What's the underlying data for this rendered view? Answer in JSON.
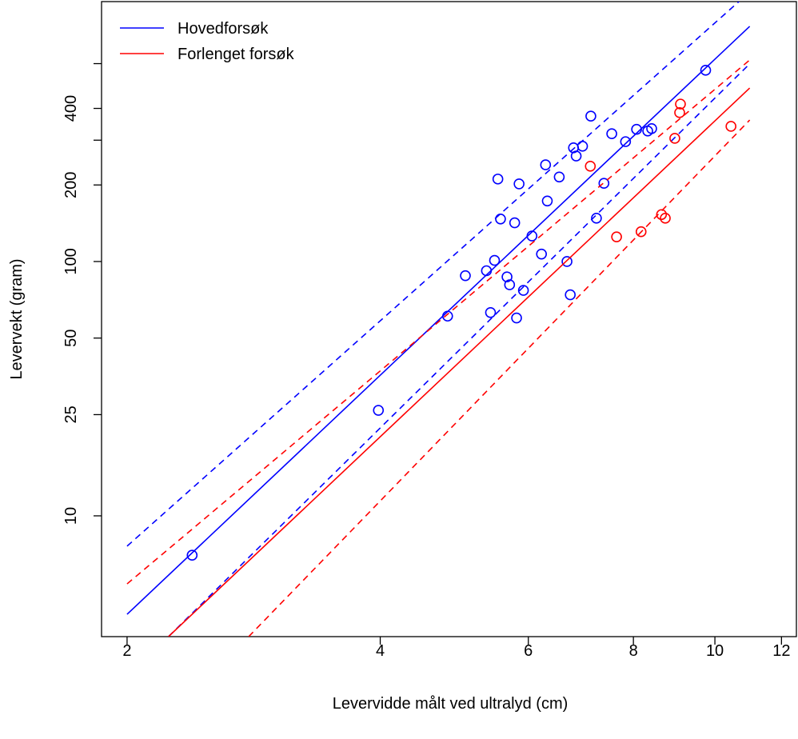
{
  "chart_data": {
    "type": "scatter",
    "x_label": "Levervidde målt ved ultralyd (cm)",
    "y_label": "Levervekt (gram)",
    "log_x": true,
    "log_y": true,
    "xlim": [
      1.865,
      12.5
    ],
    "ylim": [
      3.35,
      1052
    ],
    "xticks": [
      2,
      4,
      6,
      8,
      10,
      12
    ],
    "yticks": [
      10,
      25,
      50,
      100,
      200,
      400
    ],
    "minor_yticks": [
      300,
      600
    ],
    "legend": "top-left",
    "series": [
      {
        "name": "Hovedforsøk",
        "color": "#0000ff",
        "x": [
          2.39,
          3.98,
          4.81,
          5.05,
          5.35,
          5.47,
          5.41,
          5.52,
          5.56,
          5.66,
          5.7,
          5.78,
          5.81,
          5.85,
          5.92,
          6.06,
          6.22,
          6.29,
          6.32,
          6.53,
          6.67,
          6.73,
          6.79,
          6.84,
          6.96,
          7.12,
          7.23,
          7.38,
          7.54,
          7.83,
          8.07,
          8.32,
          8.41,
          9.75
        ],
        "values": [
          7.0,
          26,
          61,
          88,
          92,
          101,
          63,
          211,
          147,
          87,
          81,
          142,
          60,
          202,
          77,
          126,
          107,
          240,
          173,
          215,
          100,
          74,
          280,
          260,
          284,
          373,
          148,
          203,
          318,
          296,
          331,
          326,
          333,
          565
        ],
        "fit": {
          "x": [
            2,
            11
          ],
          "values": [
            4.1,
            841
          ]
        },
        "upper": {
          "x": [
            2,
            11
          ],
          "values": [
            7.6,
            1148
          ]
        },
        "lower": {
          "x": [
            2.24,
            11
          ],
          "values": [
            3.35,
            599
          ]
        }
      },
      {
        "name": "Forlenget forsøk",
        "color": "#ff0000",
        "x": [
          7.11,
          7.64,
          8.17,
          8.64,
          8.73,
          8.96,
          9.08,
          9.1,
          10.45
        ],
        "values": [
          237,
          125,
          131,
          153,
          148,
          305,
          385,
          416,
          340
        ],
        "fit": {
          "x": [
            2.24,
            11
          ],
          "values": [
            3.35,
            481
          ]
        },
        "upper": {
          "x": [
            2,
            11
          ],
          "values": [
            5.4,
            620
          ]
        },
        "lower": {
          "x": [
            2.79,
            11
          ],
          "values": [
            3.35,
            360
          ]
        }
      }
    ]
  }
}
